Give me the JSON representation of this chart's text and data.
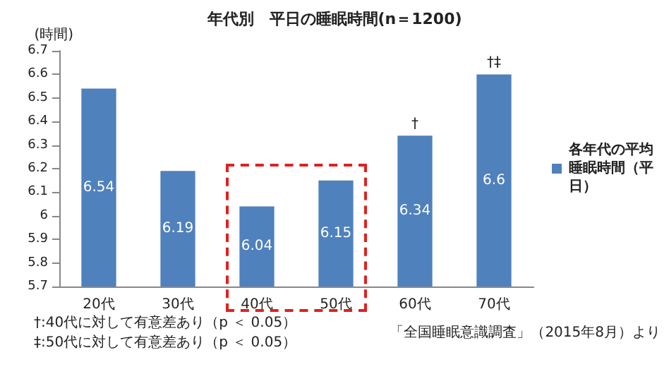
{
  "chart_data": {
    "type": "bar",
    "title": "年代別　平日の睡眠時間(n＝1200)",
    "ylabel": "(時間)",
    "categories": [
      "20代",
      "30代",
      "40代",
      "50代",
      "60代",
      "70代"
    ],
    "series": [
      {
        "name": "各年代の平均睡眠時間（平日）",
        "color": "#4f81bd",
        "values": [
          6.54,
          6.19,
          6.04,
          6.15,
          6.34,
          6.6
        ]
      }
    ],
    "ylim": [
      5.7,
      6.7
    ],
    "yticks": [
      5.7,
      5.8,
      5.9,
      6,
      6.1,
      6.2,
      6.3,
      6.4,
      6.5,
      6.6,
      6.7
    ],
    "data_labels": true,
    "grid": false,
    "legend": "right",
    "annotations": [
      {
        "text": "†",
        "x": "60代",
        "y": 6.34
      },
      {
        "text": "†‡",
        "x": "70代",
        "y": 6.6
      },
      "†:40代に対して有意差あり（p ＜ 0.05）",
      "‡:50代に対して有意差あり（p ＜ 0.05）",
      "「全国睡眠意識調査」（2015年8月）より"
    ]
  }
}
